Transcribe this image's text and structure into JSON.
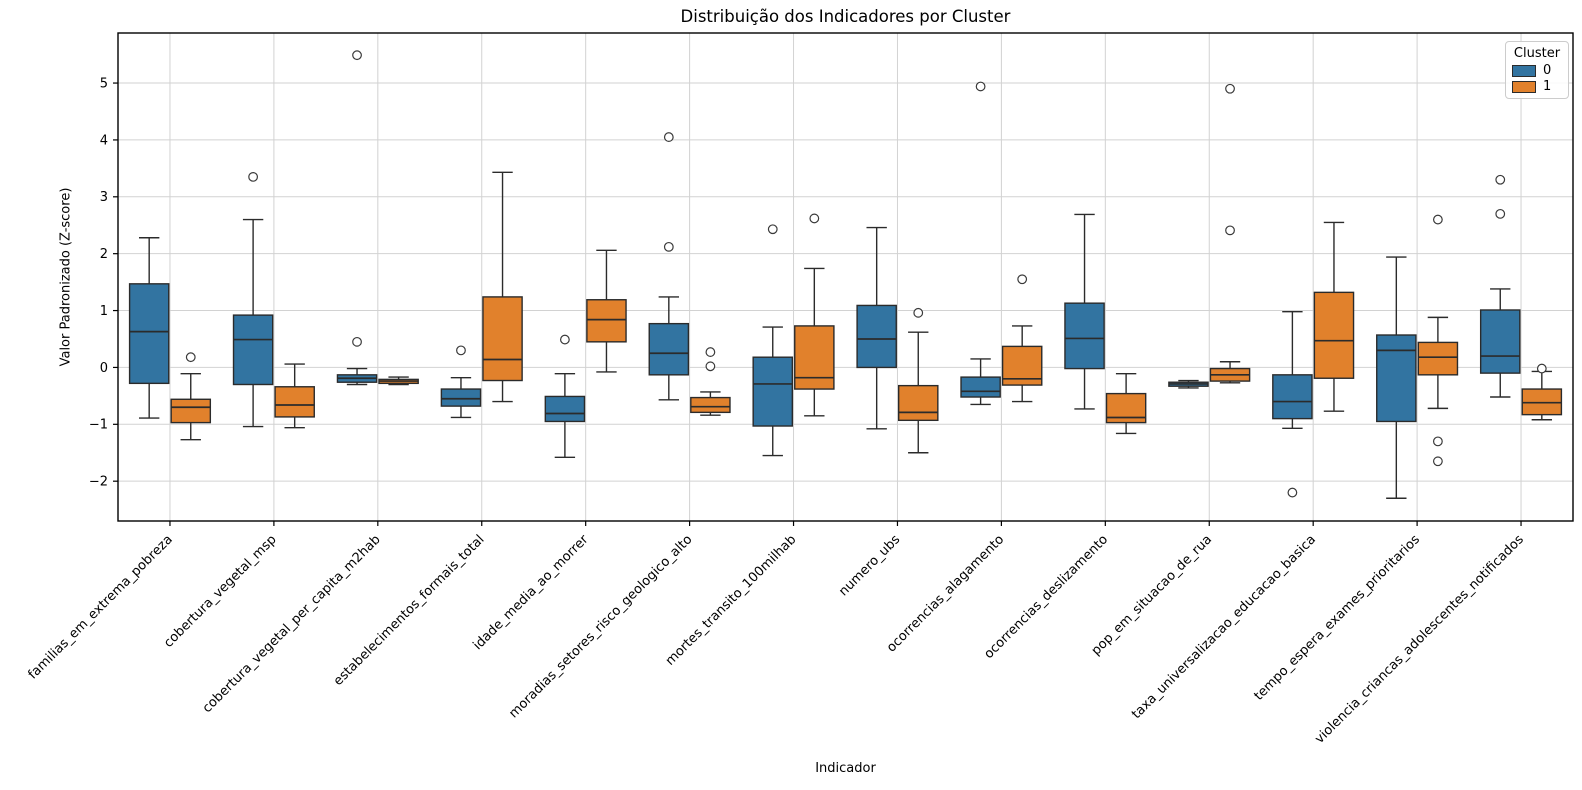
{
  "chart_data": {
    "type": "grouped_boxplot",
    "title": "Distribuição dos Indicadores por Cluster",
    "xlabel": "Indicador",
    "ylabel": "Valor Padronizado (Z-score)",
    "grid": true,
    "legend": {
      "title": "Cluster",
      "position": "upper right"
    },
    "ylim": [
      -2.7,
      5.88
    ],
    "yticks": [
      -2,
      -1,
      0,
      1,
      2,
      3,
      4,
      5
    ],
    "categories": [
      "familias_em_extrema_pobreza",
      "cobertura_vegetal_msp",
      "cobertura_vegetal_per_capita_m2hab",
      "estabelecimentos_formais_total",
      "idade_media_ao_morrer",
      "moradias_setores_risco_geologico_alto",
      "mortes_transito_100milhab",
      "numero_ubs",
      "ocorrencias_alagamento",
      "ocorrencias_deslizamento",
      "pop_em_situacao_de_rua",
      "taxa_universalizacao_educacao_basica",
      "tempo_espera_exames_prioritarios",
      "violencia_criancas_adolescentes_notificados"
    ],
    "series": [
      {
        "name": "0",
        "color": "#3274a1",
        "boxes": [
          {
            "whislo": -0.89,
            "q1": -0.28,
            "med": 0.63,
            "q3": 1.47,
            "whishi": 2.28,
            "fliers": []
          },
          {
            "whislo": -1.04,
            "q1": -0.3,
            "med": 0.49,
            "q3": 0.92,
            "whishi": 2.6,
            "fliers": [
              3.35
            ]
          },
          {
            "whislo": -0.3,
            "q1": -0.26,
            "med": -0.19,
            "q3": -0.13,
            "whishi": -0.02,
            "fliers": [
              5.49,
              0.45
            ]
          },
          {
            "whislo": -0.88,
            "q1": -0.68,
            "med": -0.55,
            "q3": -0.38,
            "whishi": -0.18,
            "fliers": [
              0.3
            ]
          },
          {
            "whislo": -1.58,
            "q1": -0.95,
            "med": -0.81,
            "q3": -0.51,
            "whishi": -0.11,
            "fliers": [
              0.49
            ]
          },
          {
            "whislo": -0.57,
            "q1": -0.13,
            "med": 0.25,
            "q3": 0.77,
            "whishi": 1.24,
            "fliers": [
              4.05,
              2.12
            ]
          },
          {
            "whislo": -1.55,
            "q1": -1.03,
            "med": -0.29,
            "q3": 0.18,
            "whishi": 0.71,
            "fliers": [
              2.43
            ]
          },
          {
            "whislo": -1.08,
            "q1": 0.0,
            "med": 0.5,
            "q3": 1.09,
            "whishi": 2.46,
            "fliers": []
          },
          {
            "whislo": -0.65,
            "q1": -0.52,
            "med": -0.42,
            "q3": -0.17,
            "whishi": 0.15,
            "fliers": [
              4.94
            ]
          },
          {
            "whislo": -0.73,
            "q1": -0.02,
            "med": 0.51,
            "q3": 1.13,
            "whishi": 2.69,
            "fliers": []
          },
          {
            "whislo": -0.36,
            "q1": -0.33,
            "med": -0.29,
            "q3": -0.26,
            "whishi": -0.23,
            "fliers": []
          },
          {
            "whislo": -1.07,
            "q1": -0.9,
            "med": -0.6,
            "q3": -0.13,
            "whishi": 0.98,
            "fliers": [
              -2.2
            ]
          },
          {
            "whislo": -2.3,
            "q1": -0.95,
            "med": 0.3,
            "q3": 0.57,
            "whishi": 1.94,
            "fliers": []
          },
          {
            "whislo": -0.52,
            "q1": -0.1,
            "med": 0.2,
            "q3": 1.01,
            "whishi": 1.38,
            "fliers": [
              3.3,
              2.7
            ]
          }
        ]
      },
      {
        "name": "1",
        "color": "#e1812c",
        "boxes": [
          {
            "whislo": -1.27,
            "q1": -0.97,
            "med": -0.7,
            "q3": -0.56,
            "whishi": -0.11,
            "fliers": [
              0.18
            ]
          },
          {
            "whislo": -1.06,
            "q1": -0.87,
            "med": -0.66,
            "q3": -0.34,
            "whishi": 0.06,
            "fliers": []
          },
          {
            "whislo": -0.3,
            "q1": -0.28,
            "med": -0.24,
            "q3": -0.21,
            "whishi": -0.17,
            "fliers": []
          },
          {
            "whislo": -0.6,
            "q1": -0.23,
            "med": 0.14,
            "q3": 1.24,
            "whishi": 3.43,
            "fliers": []
          },
          {
            "whislo": -0.08,
            "q1": 0.45,
            "med": 0.84,
            "q3": 1.19,
            "whishi": 2.06,
            "fliers": []
          },
          {
            "whislo": -0.84,
            "q1": -0.79,
            "med": -0.69,
            "q3": -0.53,
            "whishi": -0.43,
            "fliers": [
              0.27,
              0.02
            ]
          },
          {
            "whislo": -0.85,
            "q1": -0.38,
            "med": -0.18,
            "q3": 0.73,
            "whishi": 1.74,
            "fliers": [
              2.62
            ]
          },
          {
            "whislo": -1.5,
            "q1": -0.93,
            "med": -0.79,
            "q3": -0.32,
            "whishi": 0.62,
            "fliers": [
              0.96
            ]
          },
          {
            "whislo": -0.6,
            "q1": -0.31,
            "med": -0.2,
            "q3": 0.37,
            "whishi": 0.73,
            "fliers": [
              1.55
            ]
          },
          {
            "whislo": -1.16,
            "q1": -0.97,
            "med": -0.88,
            "q3": -0.46,
            "whishi": -0.11,
            "fliers": []
          },
          {
            "whislo": -0.27,
            "q1": -0.24,
            "med": -0.13,
            "q3": -0.02,
            "whishi": 0.1,
            "fliers": [
              4.9,
              2.41
            ]
          },
          {
            "whislo": -0.77,
            "q1": -0.19,
            "med": 0.47,
            "q3": 1.32,
            "whishi": 2.55,
            "fliers": []
          },
          {
            "whislo": -0.72,
            "q1": -0.13,
            "med": 0.18,
            "q3": 0.44,
            "whishi": 0.88,
            "fliers": [
              2.6,
              -1.3,
              -1.65
            ]
          },
          {
            "whislo": -0.92,
            "q1": -0.83,
            "med": -0.62,
            "q3": -0.38,
            "whishi": -0.07,
            "fliers": [
              -0.02
            ]
          }
        ]
      }
    ]
  }
}
